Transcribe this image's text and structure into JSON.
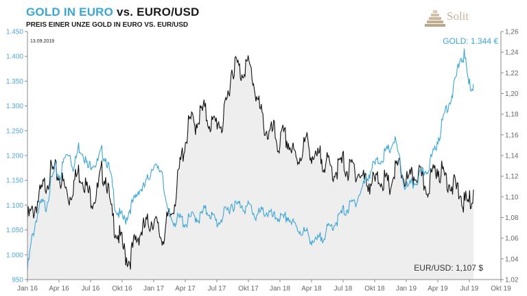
{
  "title": {
    "gold": "GOLD IN EURO",
    "rest": " vs. EURO/USD"
  },
  "subtitle": "PREIS EINER UNZE GOLD IN EURO VS. EUR/USD",
  "logo": {
    "text": "Solit",
    "icon": "stepped-pyramid-icon"
  },
  "colors": {
    "gold": "#3aa6d6",
    "eurusd": "#111111",
    "fill": "#eeeeee",
    "axis": "#888888",
    "logo": "#c8b49a"
  },
  "chart_data": {
    "type": "line",
    "date_label": "13.09.2019",
    "x_ticks": [
      "Jan 16",
      "Apr 16",
      "Jul 16",
      "Okt 16",
      "Jan 17",
      "Apr 17",
      "Jul 17",
      "Okt 17",
      "Jan 18",
      "Apr 18",
      "Jul 18",
      "Okt 18",
      "Jan 19",
      "Apr 19",
      "Jul 19",
      "Okt 19"
    ],
    "x_range": [
      "Jan 16",
      "Okt 19"
    ],
    "y_left": {
      "ticks": [
        "1.450",
        "1.400",
        "1.350",
        "1.300",
        "1.250",
        "1.200",
        "1.150",
        "1.100",
        "1.050",
        "1.000",
        "950"
      ],
      "range": [
        950,
        1450
      ],
      "series": "GOLD"
    },
    "y_right": {
      "ticks": [
        "1,26",
        "1,24",
        "1,22",
        "1,20",
        "1,18",
        "1,16",
        "1,14",
        "1,12",
        "1,10",
        "1,08",
        "1,06",
        "1,04",
        "1,02"
      ],
      "range": [
        1.02,
        1.26
      ],
      "series": "EUR/USD"
    },
    "grid": false,
    "series": [
      {
        "name": "GOLD",
        "axis": "left",
        "label": "GOLD: 1.344 €",
        "points": [
          [
            0.0,
            975
          ],
          [
            0.1,
            1040
          ],
          [
            0.2,
            1085
          ],
          [
            0.3,
            1110
          ],
          [
            0.4,
            1105
          ],
          [
            0.5,
            1150
          ],
          [
            0.6,
            1180
          ],
          [
            0.7,
            1165
          ],
          [
            0.8,
            1200
          ],
          [
            0.9,
            1215
          ],
          [
            1.0,
            1180
          ],
          [
            1.1,
            1225
          ],
          [
            1.2,
            1215
          ],
          [
            1.3,
            1180
          ],
          [
            1.4,
            1195
          ],
          [
            1.5,
            1190
          ],
          [
            1.6,
            1215
          ],
          [
            1.7,
            1200
          ],
          [
            1.8,
            1160
          ],
          [
            1.9,
            1100
          ],
          [
            2.0,
            1085
          ],
          [
            2.1,
            1075
          ],
          [
            2.2,
            1100
          ],
          [
            2.3,
            1115
          ],
          [
            2.4,
            1140
          ],
          [
            2.5,
            1140
          ],
          [
            2.6,
            1160
          ],
          [
            2.7,
            1190
          ],
          [
            2.8,
            1175
          ],
          [
            2.9,
            1180
          ],
          [
            3.0,
            1095
          ],
          [
            3.1,
            1080
          ],
          [
            3.2,
            1075
          ],
          [
            3.3,
            1080
          ],
          [
            3.4,
            1070
          ],
          [
            3.5,
            1080
          ],
          [
            3.6,
            1085
          ],
          [
            3.7,
            1080
          ],
          [
            3.8,
            1095
          ],
          [
            3.9,
            1095
          ],
          [
            4.0,
            1080
          ],
          [
            4.1,
            1070
          ],
          [
            4.2,
            1085
          ],
          [
            4.3,
            1095
          ],
          [
            4.4,
            1110
          ],
          [
            4.5,
            1105
          ],
          [
            4.6,
            1110
          ],
          [
            4.7,
            1100
          ],
          [
            4.8,
            1105
          ],
          [
            4.9,
            1085
          ],
          [
            5.0,
            1090
          ],
          [
            5.1,
            1095
          ],
          [
            5.2,
            1090
          ],
          [
            5.3,
            1080
          ],
          [
            5.4,
            1085
          ],
          [
            5.5,
            1075
          ],
          [
            5.6,
            1085
          ],
          [
            5.7,
            1070
          ],
          [
            5.8,
            1060
          ],
          [
            5.9,
            1055
          ],
          [
            6.0,
            1050
          ],
          [
            6.1,
            1040
          ],
          [
            6.2,
            1030
          ],
          [
            6.3,
            1040
          ],
          [
            6.4,
            1050
          ],
          [
            6.5,
            1060
          ],
          [
            6.6,
            1070
          ],
          [
            6.7,
            1080
          ],
          [
            6.8,
            1095
          ],
          [
            6.9,
            1100
          ],
          [
            7.0,
            1110
          ],
          [
            7.1,
            1120
          ],
          [
            7.2,
            1140
          ],
          [
            7.3,
            1160
          ],
          [
            7.4,
            1180
          ],
          [
            7.5,
            1190
          ],
          [
            7.6,
            1200
          ],
          [
            7.7,
            1210
          ],
          [
            7.8,
            1220
          ],
          [
            7.9,
            1240
          ],
          [
            8.0,
            1200
          ],
          [
            8.1,
            1150
          ],
          [
            8.2,
            1140
          ],
          [
            8.3,
            1150
          ],
          [
            8.4,
            1160
          ],
          [
            8.5,
            1170
          ],
          [
            8.6,
            1180
          ],
          [
            8.7,
            1200
          ],
          [
            8.8,
            1230
          ],
          [
            8.9,
            1260
          ],
          [
            9.0,
            1300
          ],
          [
            9.1,
            1320
          ],
          [
            9.2,
            1350
          ],
          [
            9.3,
            1400
          ],
          [
            9.4,
            1410
          ],
          [
            9.5,
            1350
          ],
          [
            9.6,
            1344
          ]
        ]
      },
      {
        "name": "EUR/USD",
        "axis": "right",
        "label": "EUR/USD: 1,107 $",
        "points": [
          [
            0.0,
            1.085
          ],
          [
            0.1,
            1.09
          ],
          [
            0.2,
            1.1
          ],
          [
            0.3,
            1.11
          ],
          [
            0.4,
            1.12
          ],
          [
            0.5,
            1.13
          ],
          [
            0.6,
            1.13
          ],
          [
            0.7,
            1.125
          ],
          [
            0.8,
            1.115
          ],
          [
            0.9,
            1.105
          ],
          [
            1.0,
            1.12
          ],
          [
            1.1,
            1.13
          ],
          [
            1.2,
            1.125
          ],
          [
            1.3,
            1.11
          ],
          [
            1.4,
            1.105
          ],
          [
            1.5,
            1.11
          ],
          [
            1.6,
            1.13
          ],
          [
            1.7,
            1.125
          ],
          [
            1.8,
            1.09
          ],
          [
            1.9,
            1.075
          ],
          [
            2.0,
            1.065
          ],
          [
            2.1,
            1.05
          ],
          [
            2.2,
            1.045
          ],
          [
            2.3,
            1.06
          ],
          [
            2.4,
            1.07
          ],
          [
            2.5,
            1.075
          ],
          [
            2.6,
            1.08
          ],
          [
            2.7,
            1.085
          ],
          [
            2.8,
            1.075
          ],
          [
            2.9,
            1.065
          ],
          [
            3.0,
            1.08
          ],
          [
            3.1,
            1.09
          ],
          [
            3.2,
            1.11
          ],
          [
            3.3,
            1.14
          ],
          [
            3.4,
            1.16
          ],
          [
            3.5,
            1.18
          ],
          [
            3.6,
            1.175
          ],
          [
            3.7,
            1.185
          ],
          [
            3.8,
            1.19
          ],
          [
            3.9,
            1.18
          ],
          [
            4.0,
            1.175
          ],
          [
            4.1,
            1.18
          ],
          [
            4.2,
            1.175
          ],
          [
            4.3,
            1.2
          ],
          [
            4.4,
            1.23
          ],
          [
            4.5,
            1.235
          ],
          [
            4.6,
            1.225
          ],
          [
            4.7,
            1.235
          ],
          [
            4.8,
            1.23
          ],
          [
            4.9,
            1.21
          ],
          [
            5.0,
            1.19
          ],
          [
            5.1,
            1.175
          ],
          [
            5.2,
            1.165
          ],
          [
            5.3,
            1.17
          ],
          [
            5.4,
            1.155
          ],
          [
            5.5,
            1.165
          ],
          [
            5.6,
            1.16
          ],
          [
            5.7,
            1.15
          ],
          [
            5.8,
            1.14
          ],
          [
            5.9,
            1.15
          ],
          [
            6.0,
            1.16
          ],
          [
            6.1,
            1.15
          ],
          [
            6.2,
            1.14
          ],
          [
            6.3,
            1.145
          ],
          [
            6.4,
            1.14
          ],
          [
            6.5,
            1.135
          ],
          [
            6.6,
            1.13
          ],
          [
            6.7,
            1.135
          ],
          [
            6.8,
            1.14
          ],
          [
            6.9,
            1.13
          ],
          [
            7.0,
            1.135
          ],
          [
            7.1,
            1.13
          ],
          [
            7.2,
            1.125
          ],
          [
            7.3,
            1.12
          ],
          [
            7.4,
            1.12
          ],
          [
            7.5,
            1.12
          ],
          [
            7.6,
            1.125
          ],
          [
            7.7,
            1.12
          ],
          [
            7.8,
            1.115
          ],
          [
            7.9,
            1.13
          ],
          [
            8.0,
            1.135
          ],
          [
            8.1,
            1.125
          ],
          [
            8.2,
            1.12
          ],
          [
            8.3,
            1.125
          ],
          [
            8.4,
            1.13
          ],
          [
            8.5,
            1.12
          ],
          [
            8.6,
            1.115
          ],
          [
            8.7,
            1.125
          ],
          [
            8.8,
            1.135
          ],
          [
            8.9,
            1.13
          ],
          [
            9.0,
            1.125
          ],
          [
            9.1,
            1.12
          ],
          [
            9.2,
            1.115
          ],
          [
            9.3,
            1.11
          ],
          [
            9.4,
            1.1
          ],
          [
            9.5,
            1.1
          ],
          [
            9.6,
            1.107
          ]
        ]
      }
    ]
  }
}
